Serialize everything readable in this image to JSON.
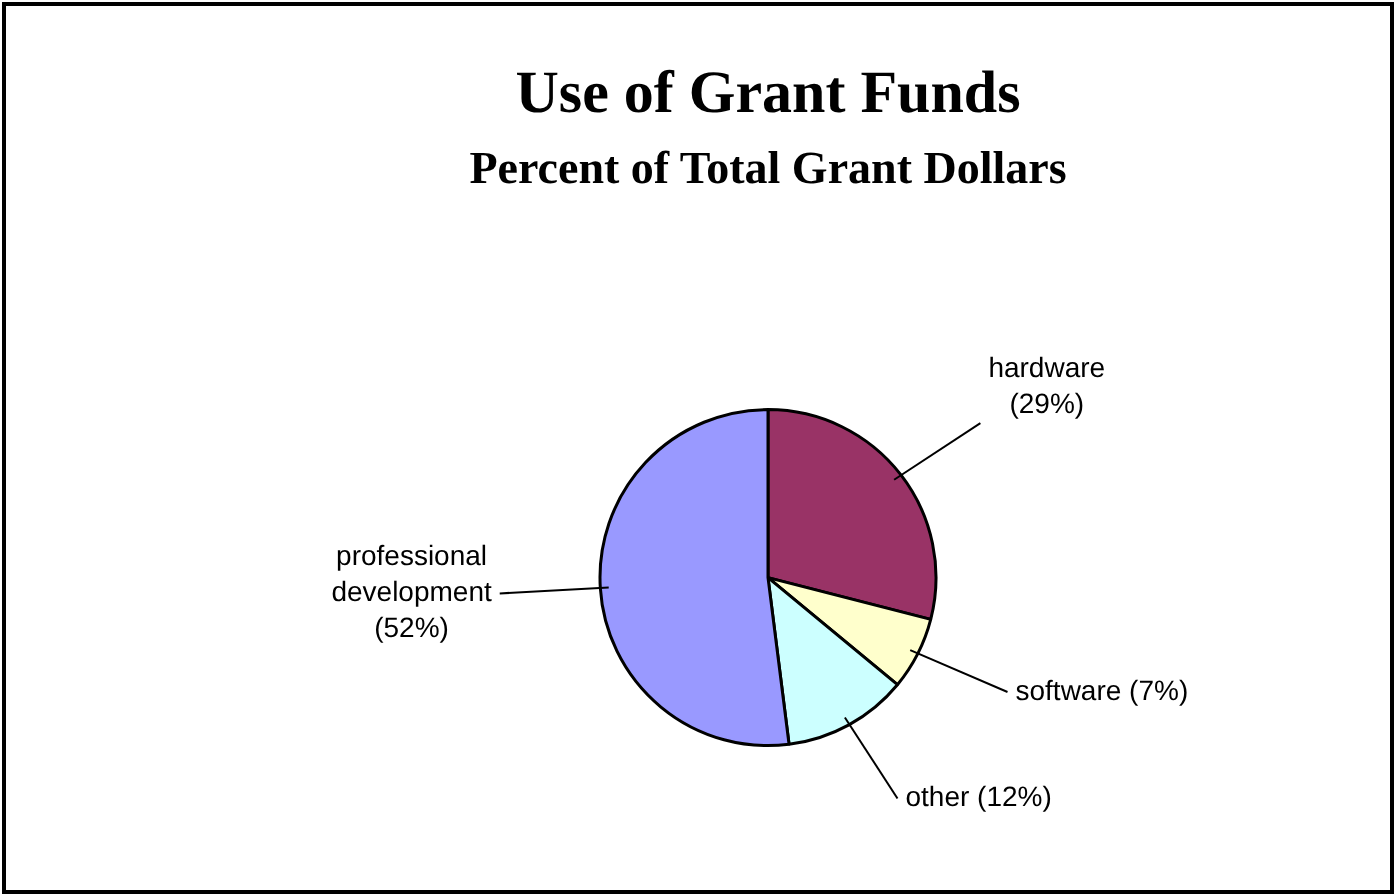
{
  "chart_data": {
    "type": "pie",
    "title": "Use of Grant Funds",
    "subtitle": "Percent of Total Grant Dollars",
    "categories": [
      "hardware",
      "software",
      "other",
      "professional development"
    ],
    "values": [
      29,
      7,
      12,
      52
    ],
    "colors": [
      "#993366",
      "#ffffcc",
      "#ccffff",
      "#9999ff"
    ],
    "value_labels": [
      "(29%)",
      "(7%)",
      "(12%)",
      "(52%)"
    ],
    "legend": false
  }
}
